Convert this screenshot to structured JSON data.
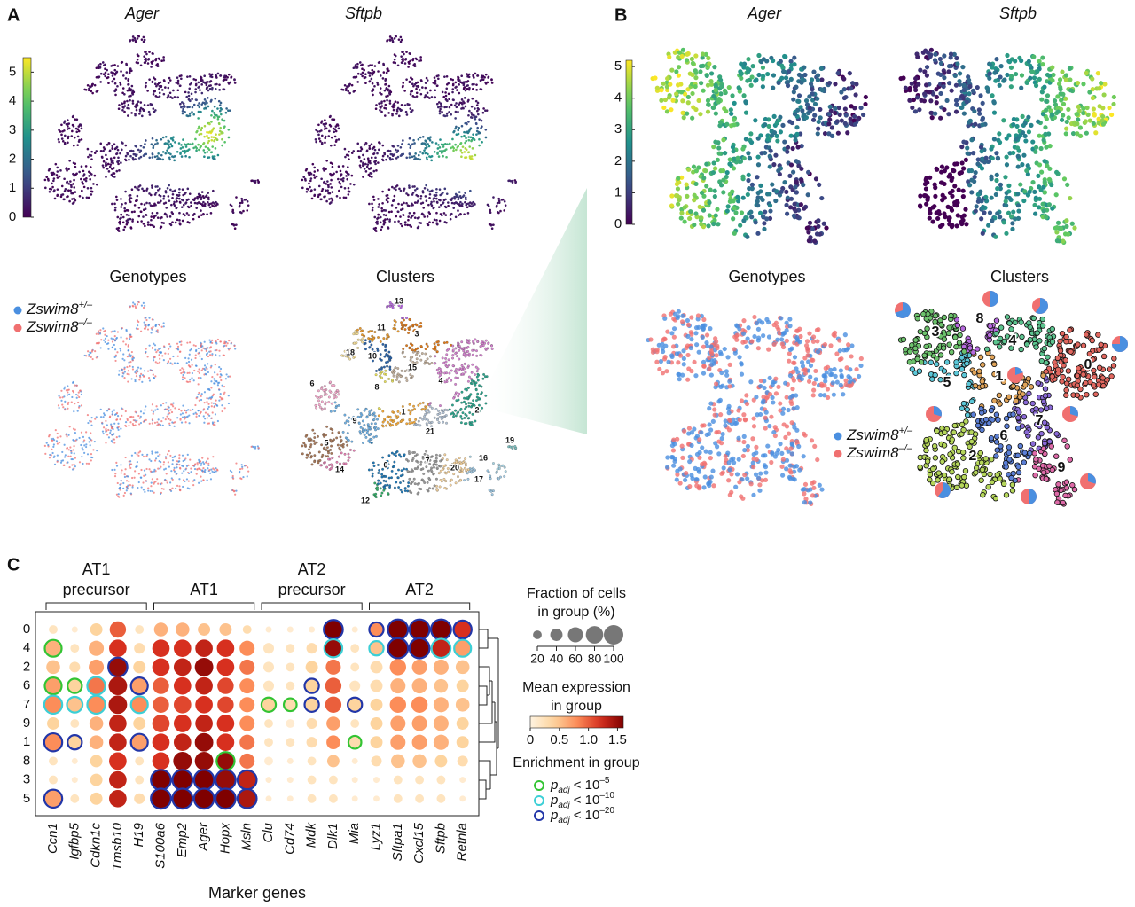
{
  "panel_labels": [
    "A",
    "B",
    "C"
  ],
  "genotypes": [
    {
      "name": "Zswim8",
      "sup": "+/–",
      "color": "#4a8fe0"
    },
    {
      "name": "Zswim8",
      "sup": "–/–",
      "color": "#f07070"
    }
  ],
  "umap_A": {
    "titles": [
      "Ager",
      "Sftpb",
      "Genotypes",
      "Clusters"
    ],
    "colorbar_lim": [
      0,
      5.5
    ],
    "colorbar_ticks": [
      0,
      1,
      2,
      3,
      4,
      5
    ],
    "cluster_labels": [
      "0",
      "1",
      "2",
      "3",
      "4",
      "5",
      "6",
      "7",
      "8",
      "9",
      "10",
      "11",
      "12",
      "13",
      "14",
      "15",
      "16",
      "17",
      "18",
      "19",
      "20",
      "21"
    ],
    "cluster_colors": [
      "#1f77b4",
      "#f2a93b",
      "#2ca58d",
      "#e07b1a",
      "#d483cf",
      "#a8795a",
      "#f3a9cb",
      "#9a9a9a",
      "#e6de5c",
      "#6fb0e3",
      "#2a63a8",
      "#e8992c",
      "#36ad6a",
      "#b86ae0",
      "#e07fb0",
      "#c4b29e",
      "#a7d3e3",
      "#9ec6e0",
      "#f2dc97",
      "#7fbfbf",
      "#f0cf9c",
      "#b0c0d2"
    ]
  },
  "umap_B": {
    "titles": [
      "Ager",
      "Sftpb",
      "Genotypes",
      "Clusters"
    ],
    "colorbar_lim": [
      0,
      5.2
    ],
    "colorbar_ticks": [
      0,
      1,
      2,
      3,
      4,
      5
    ],
    "cluster_labels": [
      "0",
      "1",
      "2",
      "3",
      "4",
      "5",
      "6",
      "7",
      "8",
      "9"
    ],
    "cluster_colors": [
      "#e2675f",
      "#e0a45a",
      "#b5d65a",
      "#6cc26c",
      "#5cc48f",
      "#5bc7d8",
      "#5b7fd6",
      "#8a6ad6",
      "#b76adf",
      "#de6aa8"
    ],
    "pie_fraction_plus": [
      0.75,
      0.2,
      0.6,
      0.7,
      0.6,
      0.3,
      0.5,
      0.3,
      0.5,
      0.3
    ]
  },
  "dotplot": {
    "groups": [
      {
        "label": [
          "AT1",
          "precursor"
        ],
        "genes": [
          "Ccn1",
          "Igfbp5",
          "Cdkn1c",
          "Tmsb10",
          "H19"
        ]
      },
      {
        "label": [
          "AT1"
        ],
        "genes": [
          "S100a6",
          "Emp2",
          "Ager",
          "Hopx",
          "Msln"
        ]
      },
      {
        "label": [
          "AT2",
          "precursor"
        ],
        "genes": [
          "Clu",
          "Cd74",
          "Mdk",
          "Dlk1",
          "Mia"
        ]
      },
      {
        "label": [
          "AT2"
        ],
        "genes": [
          "Lyz1",
          "Sftpa1",
          "Cxcl15",
          "Sftpb",
          "Retnla"
        ]
      }
    ],
    "clusters": [
      "0",
      "4",
      "2",
      "6",
      "7",
      "9",
      "1",
      "8",
      "3",
      "5"
    ],
    "x_label": "Marker genes",
    "fraction": [
      [
        20,
        10,
        40,
        70,
        20,
        50,
        50,
        40,
        40,
        20,
        10,
        10,
        10,
        90,
        10,
        50,
        100,
        100,
        100,
        80
      ],
      [
        70,
        20,
        60,
        80,
        30,
        80,
        80,
        80,
        80,
        60,
        30,
        20,
        30,
        80,
        20,
        50,
        100,
        100,
        90,
        70
      ],
      [
        50,
        30,
        60,
        90,
        40,
        80,
        80,
        90,
        80,
        60,
        30,
        20,
        40,
        60,
        20,
        40,
        70,
        60,
        60,
        50
      ],
      [
        70,
        50,
        80,
        90,
        70,
        70,
        80,
        80,
        70,
        60,
        30,
        20,
        50,
        70,
        30,
        40,
        60,
        60,
        50,
        40
      ],
      [
        80,
        60,
        80,
        90,
        70,
        70,
        80,
        80,
        70,
        60,
        50,
        40,
        50,
        70,
        50,
        40,
        70,
        70,
        60,
        50
      ],
      [
        40,
        20,
        50,
        80,
        40,
        80,
        80,
        80,
        80,
        60,
        20,
        20,
        30,
        50,
        20,
        40,
        60,
        60,
        60,
        40
      ],
      [
        80,
        50,
        50,
        80,
        70,
        80,
        80,
        90,
        80,
        60,
        20,
        20,
        30,
        50,
        40,
        40,
        60,
        60,
        60,
        40
      ],
      [
        20,
        10,
        40,
        80,
        20,
        80,
        90,
        90,
        80,
        60,
        20,
        10,
        20,
        40,
        10,
        30,
        50,
        50,
        40,
        30
      ],
      [
        20,
        10,
        40,
        80,
        20,
        100,
        100,
        100,
        100,
        90,
        10,
        10,
        20,
        20,
        10,
        10,
        20,
        20,
        20,
        10
      ],
      [
        80,
        20,
        40,
        80,
        30,
        100,
        100,
        100,
        100,
        90,
        10,
        10,
        20,
        20,
        10,
        10,
        20,
        20,
        20,
        10
      ]
    ],
    "expression": [
      [
        0.2,
        0.1,
        0.4,
        1.0,
        0.2,
        0.6,
        0.6,
        0.5,
        0.5,
        0.3,
        0.1,
        0.1,
        0.1,
        1.6,
        0.1,
        0.8,
        1.6,
        1.6,
        1.6,
        1.2
      ],
      [
        0.6,
        0.2,
        0.6,
        1.2,
        0.3,
        1.2,
        1.2,
        1.3,
        1.2,
        0.8,
        0.2,
        0.2,
        0.3,
        1.5,
        0.2,
        0.5,
        1.6,
        1.6,
        1.3,
        0.7
      ],
      [
        0.5,
        0.3,
        0.7,
        1.5,
        0.4,
        1.2,
        1.3,
        1.5,
        1.2,
        0.9,
        0.2,
        0.2,
        0.4,
        0.9,
        0.2,
        0.3,
        0.8,
        0.7,
        0.6,
        0.5
      ],
      [
        0.7,
        0.4,
        0.9,
        1.4,
        0.7,
        1.0,
        1.2,
        1.3,
        1.1,
        0.8,
        0.2,
        0.2,
        0.4,
        1.0,
        0.2,
        0.3,
        0.6,
        0.6,
        0.5,
        0.4
      ],
      [
        0.8,
        0.5,
        0.8,
        1.4,
        0.8,
        1.0,
        1.1,
        1.2,
        1.1,
        0.8,
        0.4,
        0.3,
        0.4,
        1.0,
        0.4,
        0.4,
        0.8,
        0.8,
        0.6,
        0.5
      ],
      [
        0.4,
        0.2,
        0.6,
        1.3,
        0.4,
        1.1,
        1.2,
        1.3,
        1.2,
        0.8,
        0.2,
        0.1,
        0.3,
        0.7,
        0.2,
        0.4,
        0.7,
        0.7,
        0.6,
        0.4
      ],
      [
        0.8,
        0.4,
        0.6,
        1.3,
        0.7,
        1.2,
        1.3,
        1.5,
        1.2,
        0.9,
        0.2,
        0.2,
        0.3,
        0.8,
        0.3,
        0.4,
        0.7,
        0.7,
        0.6,
        0.4
      ],
      [
        0.2,
        0.1,
        0.4,
        1.2,
        0.2,
        1.2,
        1.5,
        1.5,
        1.5,
        0.9,
        0.1,
        0.1,
        0.2,
        0.5,
        0.1,
        0.3,
        0.5,
        0.5,
        0.4,
        0.3
      ],
      [
        0.2,
        0.1,
        0.4,
        1.3,
        0.2,
        1.6,
        1.6,
        1.6,
        1.5,
        1.3,
        0.1,
        0.1,
        0.2,
        0.2,
        0.1,
        0.1,
        0.2,
        0.2,
        0.2,
        0.1
      ],
      [
        0.7,
        0.2,
        0.4,
        1.3,
        0.3,
        1.6,
        1.6,
        1.6,
        1.6,
        1.4,
        0.1,
        0.1,
        0.2,
        0.2,
        0.1,
        0.1,
        0.2,
        0.2,
        0.2,
        0.1
      ]
    ],
    "enrichment": [
      [
        null,
        null,
        null,
        null,
        null,
        null,
        null,
        null,
        null,
        null,
        null,
        null,
        null,
        -20,
        null,
        -20,
        -20,
        -20,
        -20,
        -20
      ],
      [
        -5,
        null,
        null,
        null,
        null,
        null,
        null,
        null,
        null,
        null,
        null,
        null,
        null,
        -10,
        null,
        -10,
        -20,
        -20,
        -10,
        -10
      ],
      [
        null,
        null,
        null,
        -20,
        null,
        null,
        null,
        null,
        null,
        null,
        null,
        null,
        null,
        null,
        null,
        null,
        null,
        null,
        null,
        null
      ],
      [
        -5,
        -5,
        -10,
        null,
        -20,
        null,
        null,
        null,
        null,
        null,
        null,
        null,
        -20,
        null,
        null,
        null,
        null,
        null,
        null,
        null
      ],
      [
        -10,
        -10,
        -10,
        null,
        -10,
        null,
        null,
        null,
        null,
        null,
        -5,
        -5,
        -20,
        null,
        -20,
        null,
        null,
        null,
        null,
        null
      ],
      [
        null,
        null,
        null,
        null,
        null,
        null,
        null,
        null,
        null,
        null,
        null,
        null,
        null,
        null,
        null,
        null,
        null,
        null,
        null,
        null
      ],
      [
        -20,
        -20,
        null,
        null,
        -20,
        null,
        null,
        null,
        null,
        null,
        null,
        null,
        null,
        null,
        -5,
        null,
        null,
        null,
        null,
        null
      ],
      [
        null,
        null,
        null,
        null,
        null,
        null,
        null,
        null,
        -5,
        null,
        null,
        null,
        null,
        null,
        null,
        null,
        null,
        null,
        null,
        null
      ],
      [
        null,
        null,
        null,
        null,
        null,
        -20,
        -20,
        -20,
        -20,
        -20,
        null,
        null,
        null,
        null,
        null,
        null,
        null,
        null,
        null,
        null
      ],
      [
        -20,
        null,
        null,
        null,
        null,
        -20,
        -20,
        -20,
        -20,
        -20,
        null,
        null,
        null,
        null,
        null,
        null,
        null,
        null,
        null,
        null
      ]
    ],
    "size_title": [
      "Fraction of cells",
      "in group (%)"
    ],
    "size_lim": [
      0,
      100
    ],
    "size_ticks": [
      20,
      40,
      60,
      80,
      100
    ],
    "color_title": [
      "Mean expression",
      "in group"
    ],
    "color_lim": [
      0,
      1.6
    ],
    "color_ticks": [
      0,
      0.5,
      {
        "value": 1,
        "label": "1.0"
      },
      1.5
    ],
    "enrichment_title": "Enrichment in group",
    "enrichment_p": "p",
    "enrichment_sub": "adj",
    "enrichment_op": "< 10",
    "enrichment_levels": [
      {
        "value": -5,
        "label": "–5",
        "color": "#33c433"
      },
      {
        "value": -10,
        "label": "–10",
        "color": "#3ccfd6"
      },
      {
        "value": -20,
        "label": "–20",
        "color": "#2236a8"
      }
    ]
  }
}
